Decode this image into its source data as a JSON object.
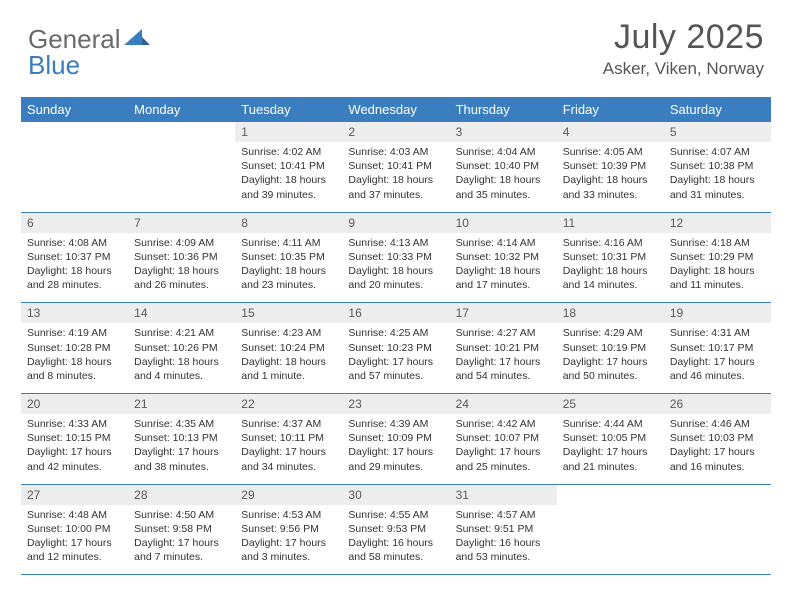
{
  "colors": {
    "header_bg": "#3a7ec0",
    "header_text": "#ffffff",
    "daynum_bg": "#ededed",
    "daynum_text": "#5a5a5a",
    "cell_text": "#333333",
    "row_border": "#3a7ec0",
    "page_bg": "#ffffff",
    "title_text": "#555555",
    "logo_gray": "#6a6a6a",
    "logo_blue": "#3a7ec0"
  },
  "logo": {
    "text1": "General",
    "text2": "Blue"
  },
  "title": "July 2025",
  "location": "Asker, Viken, Norway",
  "day_headers": [
    "Sunday",
    "Monday",
    "Tuesday",
    "Wednesday",
    "Thursday",
    "Friday",
    "Saturday"
  ],
  "weeks": [
    [
      {
        "day": "",
        "sunrise": "",
        "sunset": "",
        "daylight": ""
      },
      {
        "day": "",
        "sunrise": "",
        "sunset": "",
        "daylight": ""
      },
      {
        "day": "1",
        "sunrise": "Sunrise: 4:02 AM",
        "sunset": "Sunset: 10:41 PM",
        "daylight": "Daylight: 18 hours and 39 minutes."
      },
      {
        "day": "2",
        "sunrise": "Sunrise: 4:03 AM",
        "sunset": "Sunset: 10:41 PM",
        "daylight": "Daylight: 18 hours and 37 minutes."
      },
      {
        "day": "3",
        "sunrise": "Sunrise: 4:04 AM",
        "sunset": "Sunset: 10:40 PM",
        "daylight": "Daylight: 18 hours and 35 minutes."
      },
      {
        "day": "4",
        "sunrise": "Sunrise: 4:05 AM",
        "sunset": "Sunset: 10:39 PM",
        "daylight": "Daylight: 18 hours and 33 minutes."
      },
      {
        "day": "5",
        "sunrise": "Sunrise: 4:07 AM",
        "sunset": "Sunset: 10:38 PM",
        "daylight": "Daylight: 18 hours and 31 minutes."
      }
    ],
    [
      {
        "day": "6",
        "sunrise": "Sunrise: 4:08 AM",
        "sunset": "Sunset: 10:37 PM",
        "daylight": "Daylight: 18 hours and 28 minutes."
      },
      {
        "day": "7",
        "sunrise": "Sunrise: 4:09 AM",
        "sunset": "Sunset: 10:36 PM",
        "daylight": "Daylight: 18 hours and 26 minutes."
      },
      {
        "day": "8",
        "sunrise": "Sunrise: 4:11 AM",
        "sunset": "Sunset: 10:35 PM",
        "daylight": "Daylight: 18 hours and 23 minutes."
      },
      {
        "day": "9",
        "sunrise": "Sunrise: 4:13 AM",
        "sunset": "Sunset: 10:33 PM",
        "daylight": "Daylight: 18 hours and 20 minutes."
      },
      {
        "day": "10",
        "sunrise": "Sunrise: 4:14 AM",
        "sunset": "Sunset: 10:32 PM",
        "daylight": "Daylight: 18 hours and 17 minutes."
      },
      {
        "day": "11",
        "sunrise": "Sunrise: 4:16 AM",
        "sunset": "Sunset: 10:31 PM",
        "daylight": "Daylight: 18 hours and 14 minutes."
      },
      {
        "day": "12",
        "sunrise": "Sunrise: 4:18 AM",
        "sunset": "Sunset: 10:29 PM",
        "daylight": "Daylight: 18 hours and 11 minutes."
      }
    ],
    [
      {
        "day": "13",
        "sunrise": "Sunrise: 4:19 AM",
        "sunset": "Sunset: 10:28 PM",
        "daylight": "Daylight: 18 hours and 8 minutes."
      },
      {
        "day": "14",
        "sunrise": "Sunrise: 4:21 AM",
        "sunset": "Sunset: 10:26 PM",
        "daylight": "Daylight: 18 hours and 4 minutes."
      },
      {
        "day": "15",
        "sunrise": "Sunrise: 4:23 AM",
        "sunset": "Sunset: 10:24 PM",
        "daylight": "Daylight: 18 hours and 1 minute."
      },
      {
        "day": "16",
        "sunrise": "Sunrise: 4:25 AM",
        "sunset": "Sunset: 10:23 PM",
        "daylight": "Daylight: 17 hours and 57 minutes."
      },
      {
        "day": "17",
        "sunrise": "Sunrise: 4:27 AM",
        "sunset": "Sunset: 10:21 PM",
        "daylight": "Daylight: 17 hours and 54 minutes."
      },
      {
        "day": "18",
        "sunrise": "Sunrise: 4:29 AM",
        "sunset": "Sunset: 10:19 PM",
        "daylight": "Daylight: 17 hours and 50 minutes."
      },
      {
        "day": "19",
        "sunrise": "Sunrise: 4:31 AM",
        "sunset": "Sunset: 10:17 PM",
        "daylight": "Daylight: 17 hours and 46 minutes."
      }
    ],
    [
      {
        "day": "20",
        "sunrise": "Sunrise: 4:33 AM",
        "sunset": "Sunset: 10:15 PM",
        "daylight": "Daylight: 17 hours and 42 minutes."
      },
      {
        "day": "21",
        "sunrise": "Sunrise: 4:35 AM",
        "sunset": "Sunset: 10:13 PM",
        "daylight": "Daylight: 17 hours and 38 minutes."
      },
      {
        "day": "22",
        "sunrise": "Sunrise: 4:37 AM",
        "sunset": "Sunset: 10:11 PM",
        "daylight": "Daylight: 17 hours and 34 minutes."
      },
      {
        "day": "23",
        "sunrise": "Sunrise: 4:39 AM",
        "sunset": "Sunset: 10:09 PM",
        "daylight": "Daylight: 17 hours and 29 minutes."
      },
      {
        "day": "24",
        "sunrise": "Sunrise: 4:42 AM",
        "sunset": "Sunset: 10:07 PM",
        "daylight": "Daylight: 17 hours and 25 minutes."
      },
      {
        "day": "25",
        "sunrise": "Sunrise: 4:44 AM",
        "sunset": "Sunset: 10:05 PM",
        "daylight": "Daylight: 17 hours and 21 minutes."
      },
      {
        "day": "26",
        "sunrise": "Sunrise: 4:46 AM",
        "sunset": "Sunset: 10:03 PM",
        "daylight": "Daylight: 17 hours and 16 minutes."
      }
    ],
    [
      {
        "day": "27",
        "sunrise": "Sunrise: 4:48 AM",
        "sunset": "Sunset: 10:00 PM",
        "daylight": "Daylight: 17 hours and 12 minutes."
      },
      {
        "day": "28",
        "sunrise": "Sunrise: 4:50 AM",
        "sunset": "Sunset: 9:58 PM",
        "daylight": "Daylight: 17 hours and 7 minutes."
      },
      {
        "day": "29",
        "sunrise": "Sunrise: 4:53 AM",
        "sunset": "Sunset: 9:56 PM",
        "daylight": "Daylight: 17 hours and 3 minutes."
      },
      {
        "day": "30",
        "sunrise": "Sunrise: 4:55 AM",
        "sunset": "Sunset: 9:53 PM",
        "daylight": "Daylight: 16 hours and 58 minutes."
      },
      {
        "day": "31",
        "sunrise": "Sunrise: 4:57 AM",
        "sunset": "Sunset: 9:51 PM",
        "daylight": "Daylight: 16 hours and 53 minutes."
      },
      {
        "day": "",
        "sunrise": "",
        "sunset": "",
        "daylight": ""
      },
      {
        "day": "",
        "sunrise": "",
        "sunset": "",
        "daylight": ""
      }
    ]
  ]
}
